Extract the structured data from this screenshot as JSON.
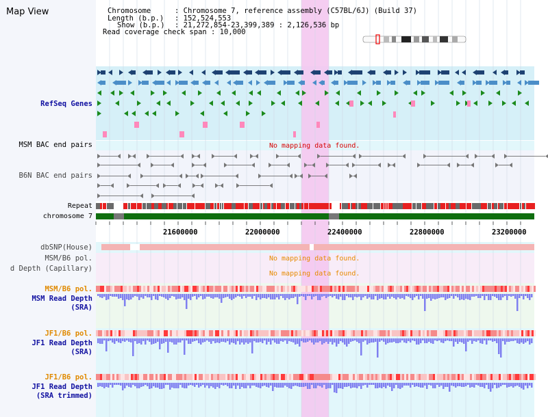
{
  "map_view": {
    "title": "Map View",
    "info": {
      "chromosome_key": "Chromosome",
      "chromosome_value": ": Chromosome 7, reference assembly (C57BL/6J) (Build 37)",
      "length_key": "Length (b.p.)",
      "length_value": ": 152,524,553",
      "show_key": "Show (b.p.)",
      "show_value": ": 21,272,854-23,399,389 : 2,126,536 bp",
      "coverage": "Read coverage check span : 10,000"
    }
  },
  "tracks": {
    "refseq_label": "RefSeq Genes",
    "msm_bac_label": "MSM BAC end pairs",
    "msm_bac_nodata": "No mapping data found.",
    "b6n_bac_label": "B6N BAC end pairs",
    "repeat_label": "Repeat",
    "chromosome_label": "chromosome 7",
    "dbsnp_label": "dbSNP(House)",
    "msm_b6_pol_cap_label": "MSM/B6 pol.",
    "msm_b6_pol_cap_nodata": "No mapping data found.",
    "depth_cap_label": "d Depth (Capillary)",
    "depth_cap_nodata": "No mapping data found.",
    "msm_b6_pol_label": "MSM/B6 pol.",
    "msm_depth_label_1": "MSM Read Depth",
    "msm_depth_label_2": "(SRA)",
    "jf1_b6_pol_label": "JF1/B6 pol.",
    "jf1_depth_label_1": "JF1 Read Depth",
    "jf1_depth_label_2": "(SRA)",
    "jf1_b6_pol2_label": "JF1/B6 pol.",
    "jf1_trim_label_1": "JF1 Read Depth",
    "jf1_trim_label_2": "(SRA trimmed)"
  },
  "axis": {
    "ticks": [
      "21600000",
      "22000000",
      "22400000",
      "22800000",
      "23200000"
    ]
  },
  "colors": {
    "gene_dark": "#1e4272",
    "gene_mid": "#4b8ec8",
    "gene_green": "#1c8a1c",
    "gene_pink": "#ff88bb",
    "highlight": "#f4c8f0",
    "track_blue": "#d6f0f8",
    "bac_bg": "#f2f4fb",
    "repeat_red": "#e82020",
    "repeat_gray": "#6a6a6a",
    "chrom_green": "#0f6e0f",
    "depth_blue": "#7f7ff0",
    "pol_red": "#ff3a3a",
    "label_blue": "#1010a0",
    "label_orange": "#e08a00"
  }
}
